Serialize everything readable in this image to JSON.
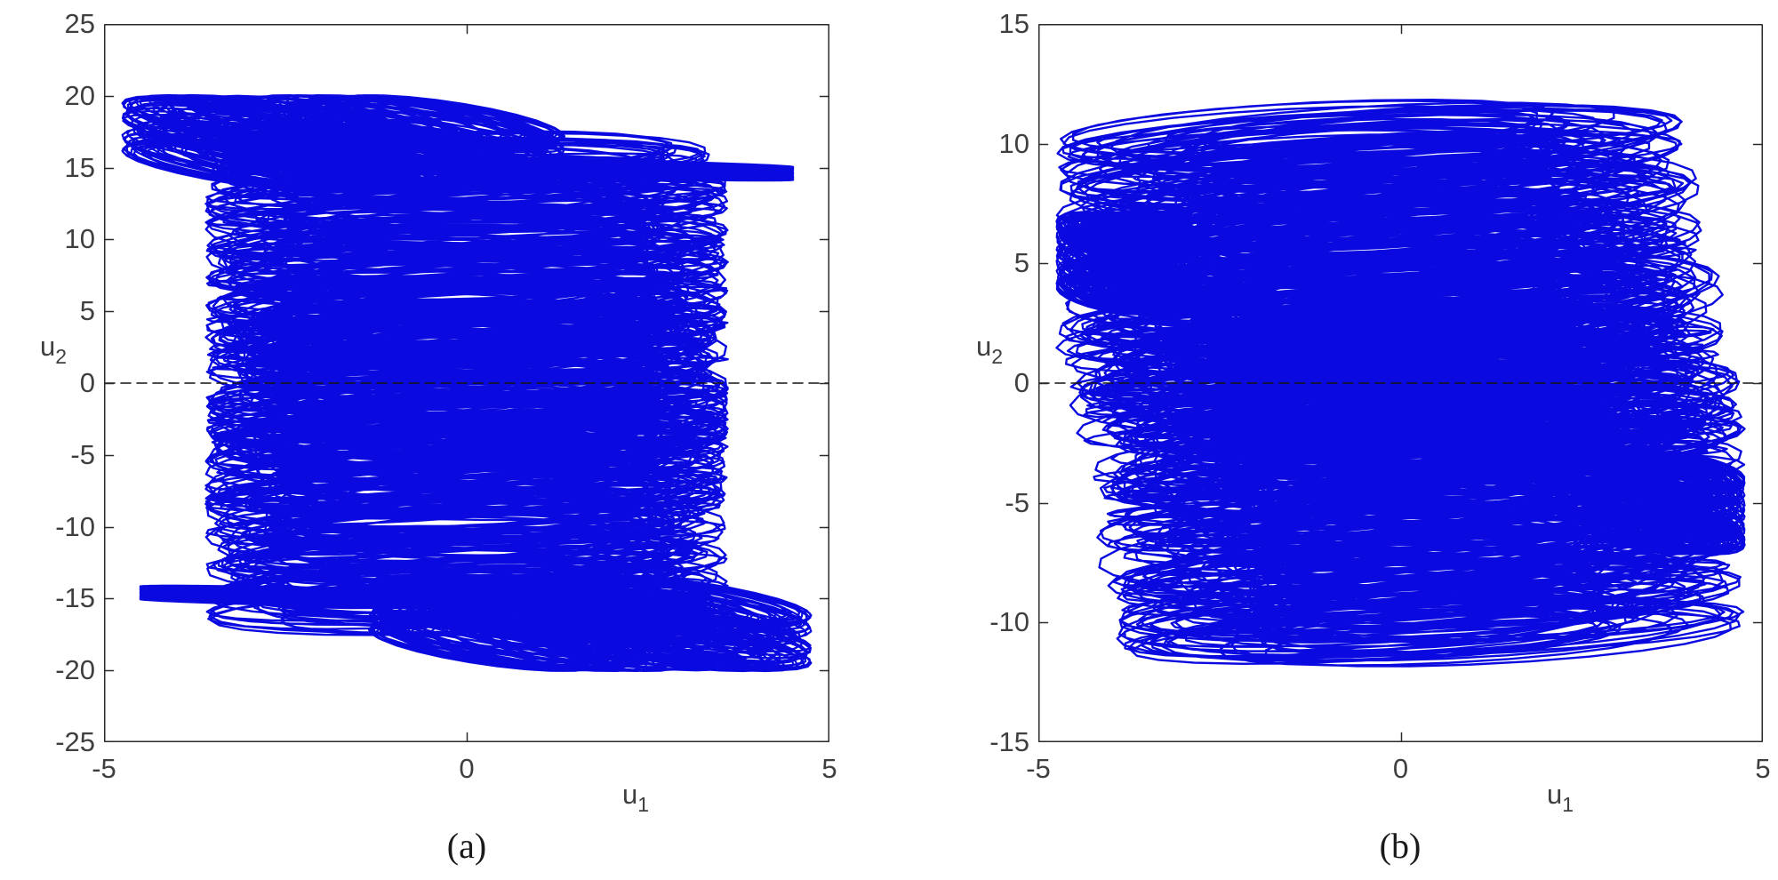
{
  "figure": {
    "background": "#ffffff",
    "trajectory_color": "#0a0ae0",
    "axis_color": "#2b2b2b",
    "tick_label_color": "#3f3f3f",
    "zero_line_color": "#141414"
  },
  "chart_data": [
    {
      "id": "a",
      "type": "line",
      "subtype": "phase-portrait",
      "title": "",
      "caption": "(a)",
      "xlabel": {
        "base": "u",
        "sub": "1"
      },
      "ylabel": {
        "base": "u",
        "sub": "2"
      },
      "xlim": [
        -5,
        5
      ],
      "ylim": [
        -25,
        25
      ],
      "xticks": [
        -5,
        0,
        5
      ],
      "yticks": [
        -25,
        -20,
        -15,
        -10,
        -5,
        0,
        5,
        10,
        15,
        20,
        25
      ],
      "grid": "off",
      "legend_position": "none",
      "zero_line": {
        "y": 0,
        "style": "dashed",
        "color": "#141414",
        "dash": [
          11,
          7
        ],
        "width": 1.6
      },
      "line_color": "#0a0ae0",
      "series": [
        {
          "name": "u1-u2 trajectory",
          "description": "dense quasi-periodic orbit filling |u1|<3.6, |u2|<18 with wing lobes near (-4.7,15) and (4.7,-15) reaching u2=±20.3 and horizontal streak bands at u2=±15",
          "bundles": [
            {
              "label": "main-body",
              "n": 11000,
              "dt": 0.26,
              "line_width": 2.4,
              "x_offset": 0,
              "x_terms": [
                [
                  3.05,
                  1,
                  0
                ],
                [
                  0.55,
                  0.1223,
                  0.8
                ]
              ],
              "y_offset": 0,
              "y_terms": [
                [
                  10.0,
                  0.0731,
                  0.25
                ],
                [
                  6.2,
                  0.0473,
                  2.0
                ],
                [
                  1.45,
                  1,
                  1.25
                ]
              ]
            },
            {
              "label": "upper-left-wing",
              "n": 4200,
              "dt": 0.29,
              "line_width": 2.2,
              "x_offset": -1.7,
              "x_terms": [
                [
                  1.55,
                  0.8731,
                  0
                ],
                [
                  1.5,
                  0.0577,
                  1.1
                ]
              ],
              "y_offset": 16.7,
              "y_terms": [
                [
                  1.75,
                  0.0731,
                  0.5
                ],
                [
                  1.6,
                  0.8731,
                  2.35
                ]
              ]
            },
            {
              "label": "lower-right-wing",
              "n": 4200,
              "dt": 0.29,
              "line_width": 2.2,
              "x_offset": 1.7,
              "x_terms": [
                [
                  -1.55,
                  0.8731,
                  0
                ],
                [
                  -1.5,
                  0.0577,
                  1.1
                ]
              ],
              "y_offset": -16.7,
              "y_terms": [
                [
                  -1.75,
                  0.0731,
                  0.5
                ],
                [
                  -1.6,
                  0.8731,
                  2.35
                ]
              ]
            },
            {
              "label": "streak-right-plus15",
              "n": 1900,
              "dt": 0.28,
              "line_width": 2.2,
              "x_offset": 0.6,
              "x_terms": [
                [
                  3.9,
                  0.9127,
                  0.2
                ]
              ],
              "y_offset": 15.05,
              "y_terms": [
                [
                  0.45,
                  0.0689,
                  0
                ],
                [
                  0.5,
                  0.9127,
                  2.9
                ]
              ]
            },
            {
              "label": "streak-left-minus15",
              "n": 1900,
              "dt": 0.28,
              "line_width": 2.2,
              "x_offset": -0.6,
              "x_terms": [
                [
                  -3.9,
                  0.9127,
                  0.2
                ]
              ],
              "y_offset": -15.05,
              "y_terms": [
                [
                  -0.45,
                  0.0689,
                  0
                ],
                [
                  -0.5,
                  0.9127,
                  2.9
                ]
              ]
            }
          ]
        }
      ]
    },
    {
      "id": "b",
      "type": "line",
      "subtype": "phase-portrait",
      "title": "",
      "caption": "(b)",
      "xlabel": {
        "base": "u",
        "sub": "1"
      },
      "ylabel": {
        "base": "u",
        "sub": "2"
      },
      "xlim": [
        -5,
        5
      ],
      "ylim": [
        -15,
        15
      ],
      "xticks": [
        -5,
        0,
        5
      ],
      "yticks": [
        -15,
        -10,
        -5,
        0,
        5,
        10,
        15
      ],
      "grid": "off",
      "legend_position": "none",
      "zero_line": {
        "y": 0,
        "style": "dashed",
        "color": "#141414",
        "dash": [
          11,
          7
        ],
        "width": 1.6
      },
      "line_color": "#0a0ae0",
      "series": [
        {
          "name": "u1-u2 trajectory",
          "description": "dense quasi-periodic orbit filling |u1|<4.8, |u2|<12 with ear lobes near (-4.7,5) and (4.7,-5)",
          "bundles": [
            {
              "label": "main-body",
              "n": 16000,
              "dt": 0.26,
              "line_width": 2.4,
              "x_offset": 0,
              "x_terms": [
                [
                  3.3,
                  1,
                  0.4
                ],
                [
                  1.0,
                  0.1171,
                  0
                ],
                [
                  -0.45,
                  0.0731,
                  0.2
                ]
              ],
              "y_offset": 0,
              "y_terms": [
                [
                  6.3,
                  0.0731,
                  0
                ],
                [
                  4.5,
                  0.0451,
                  1.3
                ],
                [
                  1.05,
                  1,
                  1.5
                ]
              ]
            },
            {
              "label": "left-ear",
              "n": 3800,
              "dt": 0.29,
              "line_width": 2.2,
              "x_offset": -3.7,
              "x_terms": [
                [
                  0.75,
                  0.8731,
                  0
                ],
                [
                  0.3,
                  0.0577,
                  0.3
                ]
              ],
              "y_offset": 5.0,
              "y_terms": [
                [
                  1.4,
                  0.0731,
                  0.4
                ],
                [
                  0.75,
                  0.8731,
                  2.1
                ]
              ]
            },
            {
              "label": "right-ear",
              "n": 3800,
              "dt": 0.29,
              "line_width": 2.2,
              "x_offset": 3.7,
              "x_terms": [
                [
                  -0.75,
                  0.8731,
                  0
                ],
                [
                  -0.3,
                  0.0577,
                  0.3
                ]
              ],
              "y_offset": -5.0,
              "y_terms": [
                [
                  -1.4,
                  0.0731,
                  0.4
                ],
                [
                  -0.75,
                  0.8731,
                  2.1
                ]
              ]
            }
          ]
        }
      ]
    }
  ]
}
